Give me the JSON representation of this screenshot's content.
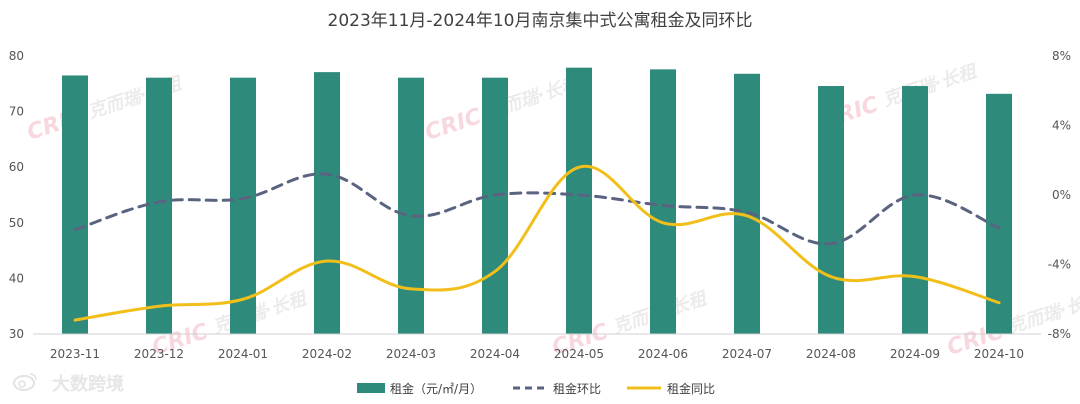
{
  "chart_data": {
    "type": "bar",
    "title": "2023年11月-2024年10月南京集中式公寓租金及同环比",
    "categories": [
      "2023-11",
      "2023-12",
      "2024-01",
      "2024-02",
      "2024-03",
      "2024-04",
      "2024-05",
      "2024-06",
      "2024-07",
      "2024-08",
      "2024-09",
      "2024-10"
    ],
    "y_left": {
      "ticks": [
        30,
        40,
        50,
        60,
        70,
        80
      ],
      "ylim": [
        30,
        80
      ]
    },
    "y_right": {
      "ticks": [
        "-8%",
        "-4%",
        "0%",
        "4%",
        "8%"
      ],
      "ylim": [
        -8,
        8
      ]
    },
    "grid": false,
    "legend_position": "bottom",
    "series": [
      {
        "name": "租金（元/㎡/月）",
        "type": "bar",
        "axis": "left",
        "color": "#2e8b7c",
        "values": [
          76.5,
          76.1,
          76.1,
          77.1,
          76.1,
          76.1,
          77.9,
          77.6,
          76.8,
          74.6,
          74.6,
          73.2
        ]
      },
      {
        "name": "租金环比",
        "type": "line",
        "axis": "right",
        "style": "dashed",
        "color": "#5a6380",
        "values": [
          -2.0,
          -0.4,
          -0.2,
          1.2,
          -1.2,
          0.0,
          0.0,
          -0.6,
          -1.0,
          -2.8,
          0.0,
          -1.9
        ]
      },
      {
        "name": "租金同比",
        "type": "line",
        "axis": "right",
        "style": "solid",
        "color": "#f2bf1a",
        "values": [
          -7.2,
          -6.4,
          -6.0,
          -3.8,
          -5.4,
          -4.4,
          1.6,
          -1.6,
          -1.2,
          -4.7,
          -4.7,
          -6.2
        ]
      }
    ]
  },
  "watermarks": {
    "brand_latin": "CRIC",
    "brand_cn": "克而瑞·长租",
    "source_badge": "大数跨境"
  }
}
